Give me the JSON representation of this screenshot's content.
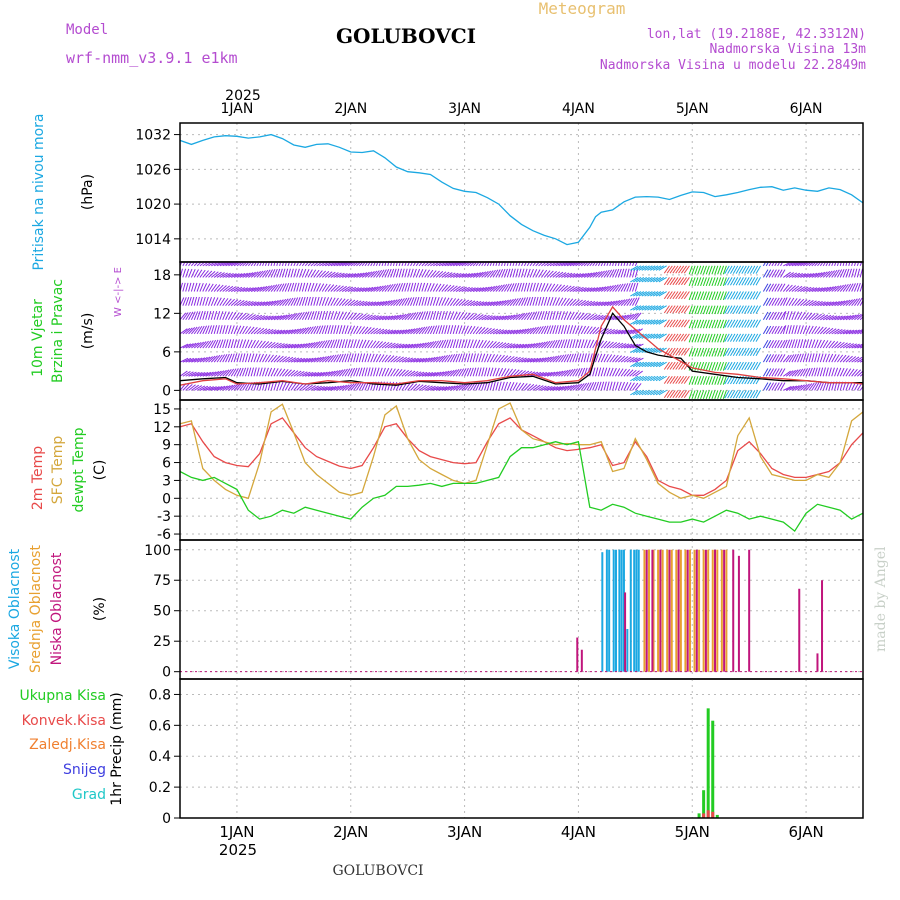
{
  "header": {
    "model_label": "Model",
    "model_name": "wrf-nmm_v3.9.1 e1km",
    "station": "GOLUBOVCI",
    "meteogram": "Meteogram",
    "lonlat": "lon,lat (19.2188E, 42.3312N)",
    "elevation": "Nadmorska Visina 13m",
    "model_elevation": "Nadmorska Visina u modelu 22.2849m",
    "watermark": "made by Angel",
    "footer_station": "GOLUBOVCI"
  },
  "colors": {
    "pressure": "#1ba8e2",
    "wind_speed": "#000000",
    "wind_gust": "#e04040",
    "temp2m": "#e84a4a",
    "sfc_temp": "#d4a73c",
    "dewpoint": "#22cc22",
    "high_cloud": "#1ba8e2",
    "mid_cloud": "#e8a030",
    "low_cloud": "#c0157c",
    "total_precip": "#22cc22",
    "conv_precip": "#e84a4a",
    "frz_precip": "#f08030",
    "snow": "#4040e0",
    "graupel": "#20c8c8",
    "grid": "#bbbbbb"
  },
  "time_axis": {
    "year": "2025",
    "days": [
      "1JAN",
      "2JAN",
      "3JAN",
      "4JAN",
      "5JAN",
      "6JAN"
    ],
    "range_days": [
      -0.5,
      5.5
    ]
  },
  "chart_data": [
    {
      "type": "line",
      "panel": "pressure",
      "ylabel_lines": [
        "Pritisak na nivou mora"
      ],
      "unit": "(hPa)",
      "yticks": [
        1014,
        1020,
        1026,
        1032
      ],
      "ylim": [
        1010,
        1034
      ],
      "grid": true,
      "series": [
        {
          "color_key": "pressure",
          "x": [
            -0.5,
            -0.4,
            -0.3,
            -0.2,
            -0.1,
            0.0,
            0.1,
            0.2,
            0.3,
            0.4,
            0.5,
            0.6,
            0.7,
            0.8,
            0.9,
            1.0,
            1.1,
            1.2,
            1.3,
            1.4,
            1.5,
            1.6,
            1.7,
            1.8,
            1.9,
            2.0,
            2.1,
            2.2,
            2.3,
            2.4,
            2.5,
            2.6,
            2.7,
            2.8,
            2.9,
            3.0,
            3.1,
            3.15,
            3.2,
            3.3,
            3.4,
            3.5,
            3.6,
            3.7,
            3.8,
            3.9,
            4.0,
            4.1,
            4.2,
            4.3,
            4.4,
            4.5,
            4.6,
            4.7,
            4.8,
            4.9,
            5.0,
            5.1,
            5.2,
            5.3,
            5.4,
            5.5
          ],
          "y": [
            1031,
            1030.3,
            1031.0,
            1031.6,
            1031.8,
            1031.7,
            1031.4,
            1031.6,
            1032.0,
            1031.3,
            1030.2,
            1029.8,
            1030.3,
            1030.4,
            1029.8,
            1029.0,
            1028.9,
            1029.2,
            1028.0,
            1026.4,
            1025.6,
            1025.4,
            1025.1,
            1023.8,
            1022.7,
            1022.2,
            1022.0,
            1021.1,
            1020.0,
            1018.0,
            1016.5,
            1015.4,
            1014.6,
            1014.0,
            1013.0,
            1013.4,
            1016.0,
            1017.8,
            1018.6,
            1019.0,
            1020.4,
            1021.2,
            1021.3,
            1021.2,
            1020.8,
            1021.5,
            1022.1,
            1022.0,
            1021.3,
            1021.6,
            1022.0,
            1022.5,
            1022.9,
            1023.0,
            1022.4,
            1022.8,
            1022.4,
            1022.2,
            1022.8,
            1022.5,
            1021.6,
            1020.2
          ]
        }
      ]
    },
    {
      "type": "line",
      "panel": "wind",
      "ylabel_lines": [
        "10m Vjetar",
        "Brzina i Pravac"
      ],
      "unit": "(m/s)",
      "compass": "W <-|-> E",
      "yticks": [
        0,
        6,
        12,
        18
      ],
      "ylim": [
        -1.5,
        20
      ],
      "grid": true,
      "series": [
        {
          "color_key": "wind_speed",
          "x": [
            -0.5,
            -0.3,
            -0.1,
            0.0,
            0.2,
            0.4,
            0.6,
            0.8,
            1.0,
            1.2,
            1.4,
            1.6,
            1.8,
            2.0,
            2.2,
            2.4,
            2.6,
            2.8,
            3.0,
            3.1,
            3.2,
            3.3,
            3.4,
            3.5,
            3.6,
            3.7,
            3.8,
            3.9,
            4.0,
            4.2,
            4.4,
            4.6,
            4.8,
            5.0,
            5.2,
            5.4,
            5.5
          ],
          "y": [
            1.5,
            1.8,
            2.0,
            1.2,
            1.0,
            1.4,
            1.0,
            1.2,
            1.5,
            1.0,
            0.8,
            1.4,
            1.2,
            1.0,
            1.2,
            2.0,
            2.2,
            1.0,
            1.2,
            2.5,
            8.0,
            12.0,
            10.0,
            7.0,
            6.0,
            5.5,
            5.2,
            5.0,
            3.0,
            2.5,
            2.0,
            1.8,
            1.5,
            1.5,
            1.2,
            1.2,
            1.2
          ]
        },
        {
          "color_key": "wind_gust",
          "x": [
            -0.5,
            -0.3,
            -0.1,
            0.0,
            0.2,
            0.4,
            0.6,
            0.8,
            1.0,
            1.2,
            1.4,
            1.6,
            1.8,
            2.0,
            2.2,
            2.4,
            2.6,
            2.8,
            3.0,
            3.1,
            3.2,
            3.3,
            3.4,
            3.5,
            3.6,
            3.7,
            3.8,
            3.9,
            4.0,
            4.2,
            4.4,
            4.6,
            4.8,
            5.0,
            5.2,
            5.4,
            5.5
          ],
          "y": [
            0.8,
            1.5,
            1.8,
            1.0,
            1.2,
            1.5,
            1.0,
            1.5,
            1.2,
            1.2,
            1.0,
            1.5,
            1.5,
            1.2,
            1.5,
            2.2,
            2.5,
            1.2,
            1.5,
            3.0,
            10.0,
            13.0,
            11.0,
            9.5,
            8.0,
            6.5,
            5.5,
            4.5,
            3.5,
            2.8,
            2.5,
            2.0,
            1.8,
            1.5,
            1.2,
            1.2,
            1.0
          ]
        }
      ],
      "barb_colors": {
        "calm": "#8a2be2",
        "northeast": "#1ba8e2",
        "south": "#22cc22",
        "southwest": "#e84a4a",
        "east": "#4040e0"
      }
    },
    {
      "type": "line",
      "panel": "temperature",
      "ylabel_lines": [
        "2m Temp",
        "SFC Temp",
        "dewpt Temp"
      ],
      "unit": "(C)",
      "yticks": [
        -6,
        -3,
        0,
        3,
        6,
        9,
        12,
        15
      ],
      "ylim": [
        -7,
        16.5
      ],
      "grid": true,
      "series": [
        {
          "name": "2m Temp",
          "color_key": "temp2m",
          "x": [
            -0.5,
            -0.4,
            -0.3,
            -0.2,
            -0.1,
            0.0,
            0.1,
            0.2,
            0.3,
            0.4,
            0.5,
            0.6,
            0.7,
            0.8,
            0.9,
            1.0,
            1.1,
            1.2,
            1.3,
            1.4,
            1.5,
            1.6,
            1.7,
            1.8,
            1.9,
            2.0,
            2.1,
            2.2,
            2.3,
            2.4,
            2.5,
            2.6,
            2.7,
            2.8,
            2.9,
            3.0,
            3.1,
            3.2,
            3.3,
            3.4,
            3.5,
            3.6,
            3.7,
            3.8,
            3.9,
            4.0,
            4.1,
            4.2,
            4.3,
            4.4,
            4.5,
            4.6,
            4.7,
            4.8,
            4.9,
            5.0,
            5.1,
            5.2,
            5.3,
            5.4,
            5.5
          ],
          "y": [
            12.0,
            12.5,
            9.5,
            7.0,
            6.0,
            5.5,
            5.3,
            7.5,
            12.5,
            13.5,
            11.0,
            8.5,
            7.0,
            6.2,
            5.4,
            5.0,
            5.5,
            8.5,
            12.0,
            12.5,
            10.0,
            8.0,
            7.0,
            6.5,
            6.0,
            5.8,
            6.0,
            9.5,
            12.5,
            13.5,
            11.5,
            10.5,
            9.5,
            8.5,
            8.0,
            8.2,
            8.5,
            9.0,
            5.5,
            6.0,
            9.5,
            7.0,
            3.0,
            2.0,
            1.5,
            0.5,
            0.5,
            1.5,
            3.0,
            8.0,
            9.5,
            7.5,
            5.0,
            4.0,
            3.5,
            3.5,
            4.0,
            4.5,
            6.0,
            9.0,
            11.0
          ]
        },
        {
          "name": "SFC Temp",
          "color_key": "sfc_temp",
          "x": [
            -0.5,
            -0.4,
            -0.3,
            -0.2,
            -0.1,
            0.0,
            0.1,
            0.2,
            0.3,
            0.4,
            0.5,
            0.6,
            0.7,
            0.8,
            0.9,
            1.0,
            1.1,
            1.2,
            1.3,
            1.4,
            1.5,
            1.6,
            1.7,
            1.8,
            1.9,
            2.0,
            2.1,
            2.2,
            2.3,
            2.4,
            2.5,
            2.6,
            2.7,
            2.8,
            2.9,
            3.0,
            3.1,
            3.2,
            3.3,
            3.4,
            3.5,
            3.6,
            3.7,
            3.8,
            3.9,
            4.0,
            4.1,
            4.2,
            4.3,
            4.4,
            4.5,
            4.6,
            4.7,
            4.8,
            4.9,
            5.0,
            5.1,
            5.2,
            5.3,
            5.4,
            5.5
          ],
          "y": [
            12.5,
            13.0,
            5.0,
            3.0,
            1.5,
            0.5,
            0.0,
            6.0,
            14.5,
            15.8,
            11.0,
            6.0,
            4.0,
            2.5,
            1.0,
            0.5,
            1.0,
            7.0,
            14.0,
            15.5,
            10.0,
            6.5,
            5.0,
            4.0,
            3.0,
            2.5,
            3.0,
            9.0,
            15.0,
            16.0,
            11.5,
            10.0,
            9.5,
            9.0,
            9.2,
            9.0,
            9.0,
            9.5,
            4.5,
            5.0,
            10.0,
            6.5,
            2.5,
            1.0,
            0.0,
            0.5,
            0.0,
            1.0,
            2.0,
            10.5,
            13.5,
            7.0,
            4.0,
            3.5,
            3.0,
            3.0,
            4.0,
            3.5,
            6.0,
            13.0,
            14.5
          ]
        },
        {
          "name": "dewpt Temp",
          "color_key": "dewpoint",
          "x": [
            -0.5,
            -0.4,
            -0.3,
            -0.2,
            -0.1,
            0.0,
            0.1,
            0.2,
            0.3,
            0.4,
            0.5,
            0.6,
            0.7,
            0.8,
            0.9,
            1.0,
            1.1,
            1.2,
            1.3,
            1.4,
            1.5,
            1.6,
            1.7,
            1.8,
            1.9,
            2.0,
            2.1,
            2.2,
            2.3,
            2.4,
            2.5,
            2.6,
            2.7,
            2.8,
            2.9,
            3.0,
            3.1,
            3.2,
            3.3,
            3.4,
            3.5,
            3.6,
            3.7,
            3.8,
            3.9,
            4.0,
            4.1,
            4.2,
            4.3,
            4.4,
            4.5,
            4.6,
            4.7,
            4.8,
            4.9,
            5.0,
            5.1,
            5.2,
            5.3,
            5.4,
            5.5
          ],
          "y": [
            4.5,
            3.5,
            3.0,
            3.5,
            2.5,
            1.5,
            -2.0,
            -3.5,
            -3.0,
            -2.0,
            -2.5,
            -1.5,
            -2.0,
            -2.5,
            -3.0,
            -3.5,
            -1.5,
            0.0,
            0.5,
            2.0,
            2.0,
            2.2,
            2.5,
            2.0,
            2.5,
            2.5,
            2.5,
            3.0,
            3.5,
            7.0,
            8.5,
            8.5,
            9.0,
            9.5,
            9.0,
            9.5,
            -1.5,
            -2.0,
            -1.0,
            -1.5,
            -2.5,
            -3.0,
            -3.5,
            -4.0,
            -4.0,
            -3.5,
            -4.0,
            -3.0,
            -2.0,
            -2.5,
            -3.5,
            -3.0,
            -3.5,
            -4.0,
            -5.5,
            -2.5,
            -1.0,
            -1.5,
            -2.0,
            -3.5,
            -2.5
          ]
        }
      ]
    },
    {
      "type": "bar",
      "panel": "cloud",
      "ylabel_lines": [
        "Visoka Oblacnost",
        "Srednja Oblacnost",
        "Niska Oblacnost"
      ],
      "unit": "(%)",
      "yticks": [
        0,
        25,
        50,
        75,
        100
      ],
      "ylim": [
        -6,
        108
      ],
      "grid": true,
      "series": [
        {
          "name": "Visoka Oblacnost",
          "color_key": "high_cloud",
          "x": [
            3.21,
            3.25,
            3.27,
            3.31,
            3.33,
            3.36,
            3.38,
            3.4,
            3.43,
            3.46,
            3.49,
            3.51,
            3.53
          ],
          "values": [
            98,
            100,
            100,
            100,
            100,
            100,
            100,
            100,
            35,
            100,
            100,
            100,
            100
          ]
        },
        {
          "name": "Srednja Oblacnost",
          "color_key": "mid_cloud",
          "x": [
            3.58,
            3.62,
            3.66,
            3.7,
            3.74,
            3.78,
            3.82,
            3.86,
            3.9,
            3.94,
            3.98,
            4.02,
            4.06,
            4.1,
            4.14,
            4.18,
            4.22,
            4.26,
            4.3
          ],
          "values": [
            100,
            100,
            100,
            100,
            100,
            100,
            100,
            100,
            100,
            100,
            100,
            100,
            100,
            100,
            100,
            100,
            100,
            100,
            100
          ]
        },
        {
          "name": "Niska Oblacnost",
          "color_key": "low_cloud",
          "x": [
            2.99,
            3.03,
            3.41,
            3.6,
            3.65,
            3.72,
            3.8,
            3.88,
            3.96,
            4.04,
            4.12,
            4.2,
            4.28,
            4.36,
            4.41,
            4.5,
            4.94,
            5.1,
            5.14
          ],
          "values": [
            28,
            18,
            65,
            100,
            100,
            100,
            100,
            100,
            100,
            100,
            100,
            100,
            100,
            100,
            95,
            100,
            68,
            15,
            75
          ]
        }
      ]
    },
    {
      "type": "bar",
      "panel": "precip",
      "ylabel_lines": [
        "1hr Precip (mm)"
      ],
      "legend": [
        "Ukupna Kisa",
        "Konvek.Kisa",
        "Zaledj.Kisa",
        "Snijeg",
        "Grad"
      ],
      "yticks": [
        0,
        0.2,
        0.4,
        0.6,
        0.8
      ],
      "ylim": [
        0,
        0.9
      ],
      "grid": true,
      "series": [
        {
          "name": "Ukupna Kisa",
          "color_key": "total_precip",
          "x": [
            4.06,
            4.1,
            4.14,
            4.18,
            4.22
          ],
          "values": [
            0.03,
            0.18,
            0.71,
            0.63,
            0.02
          ]
        },
        {
          "name": "Konvek.Kisa",
          "color_key": "conv_precip",
          "x": [
            4.1,
            4.14,
            4.18
          ],
          "values": [
            0.03,
            0.05,
            0.04
          ]
        }
      ]
    }
  ]
}
